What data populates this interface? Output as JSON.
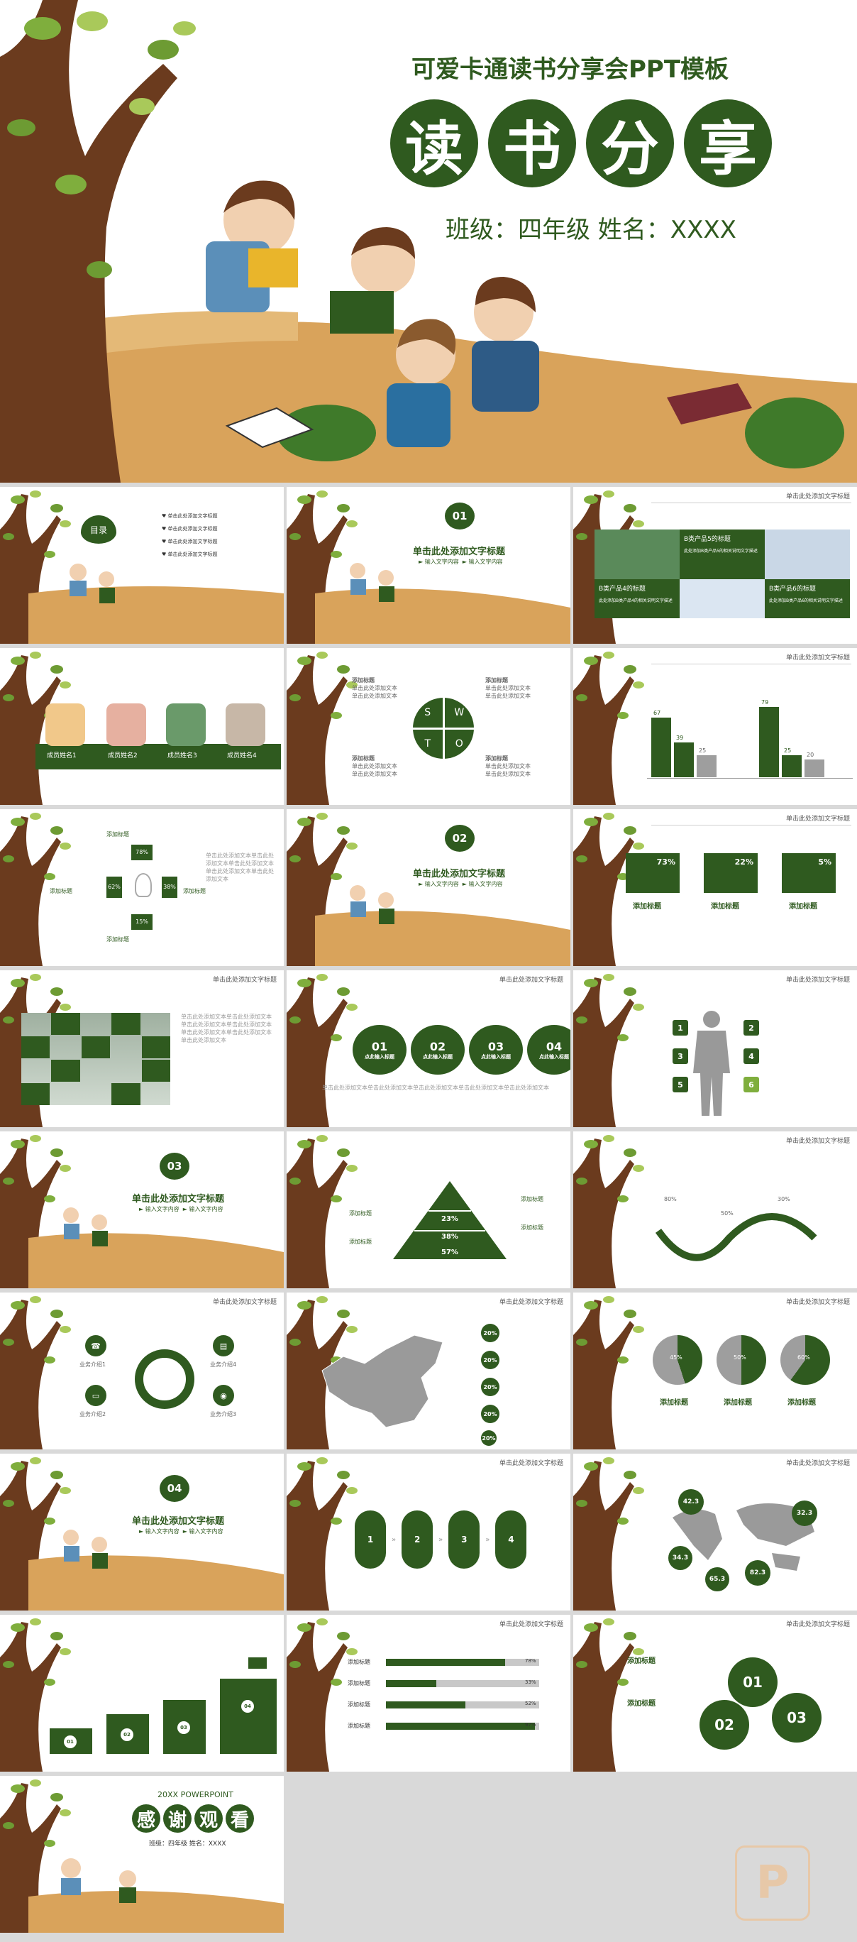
{
  "hero": {
    "subtitle": "可爱卡通读书分享会PPT模板",
    "title_chars": [
      "读",
      "书",
      "分",
      "享"
    ],
    "info": "班级：四年级   姓名：XXXX"
  },
  "common": {
    "header": "单击此处添加文字标题",
    "click_title": "单击此处添加文字标题",
    "input_content": "输入文字内容",
    "add_title": "添加标题",
    "text_line": "单击此处添加文本"
  },
  "toc": {
    "label": "目录",
    "items": [
      "单击此处添加文字标题",
      "单击此处添加文字标题",
      "单击此处添加文字标题",
      "单击此处添加文字标题"
    ]
  },
  "sections": [
    "01",
    "02",
    "03",
    "04"
  ],
  "products": [
    {
      "title": "B类产品5的标题",
      "desc": "此处添加B类产品5的相关说明文字描述"
    },
    {
      "title": "B类产品4的标题",
      "desc": "此处添加B类产品4的相关说明文字描述"
    },
    {
      "title": "B类产品6的标题",
      "desc": "此处添加B类产品6的相关说明文字描述"
    }
  ],
  "results": [
    "成员姓名1",
    "成员姓名2",
    "成员姓名3",
    "成员姓名4"
  ],
  "swot": [
    "S",
    "W",
    "T",
    "O"
  ],
  "bars": {
    "left": [
      67,
      39,
      25
    ],
    "right": [
      79,
      25,
      20
    ]
  },
  "bulb": {
    "values": [
      "78%",
      "62%",
      "38%",
      "15%"
    ]
  },
  "stats": [
    "73%",
    "22%",
    "5%"
  ],
  "steps": [
    "01",
    "02",
    "03",
    "04"
  ],
  "step_label": "点此输入标题",
  "person_nums": [
    "1",
    "2",
    "3",
    "4",
    "5",
    "6"
  ],
  "pyramid": [
    "23%",
    "38%",
    "57%"
  ],
  "wave_pcts": [
    "80%",
    "50%",
    "30%"
  ],
  "ring_labels": [
    "业务介绍1",
    "业务介绍2",
    "业务介绍3",
    "业务介绍4"
  ],
  "map_pcts": [
    "20%",
    "20%",
    "20%",
    "20%",
    "20%"
  ],
  "pies": [
    "45%",
    "50%",
    "60%"
  ],
  "flow": [
    "1",
    "2",
    "3",
    "4"
  ],
  "world": [
    "42.3",
    "32.3",
    "34.3",
    "65.3",
    "82.3"
  ],
  "stairs": [
    "01",
    "02",
    "03",
    "04"
  ],
  "progress": [
    {
      "label": "添加标题",
      "value": "78%"
    },
    {
      "label": "添加标题",
      "value": "33%"
    },
    {
      "label": "添加标题",
      "value": "52%"
    },
    {
      "label": "添加标题",
      "value": "97%"
    }
  ],
  "blobs": [
    "01",
    "02",
    "03"
  ],
  "thanks": {
    "eyebrow": "20XX POWERPOINT",
    "chars": [
      "感",
      "谢",
      "观",
      "看"
    ],
    "info": "班级：四年级   姓名：XXXX"
  },
  "colors": {
    "primary": "#2f5a1f",
    "ground": "#d9a35b",
    "grey": "#9e9e9e"
  }
}
